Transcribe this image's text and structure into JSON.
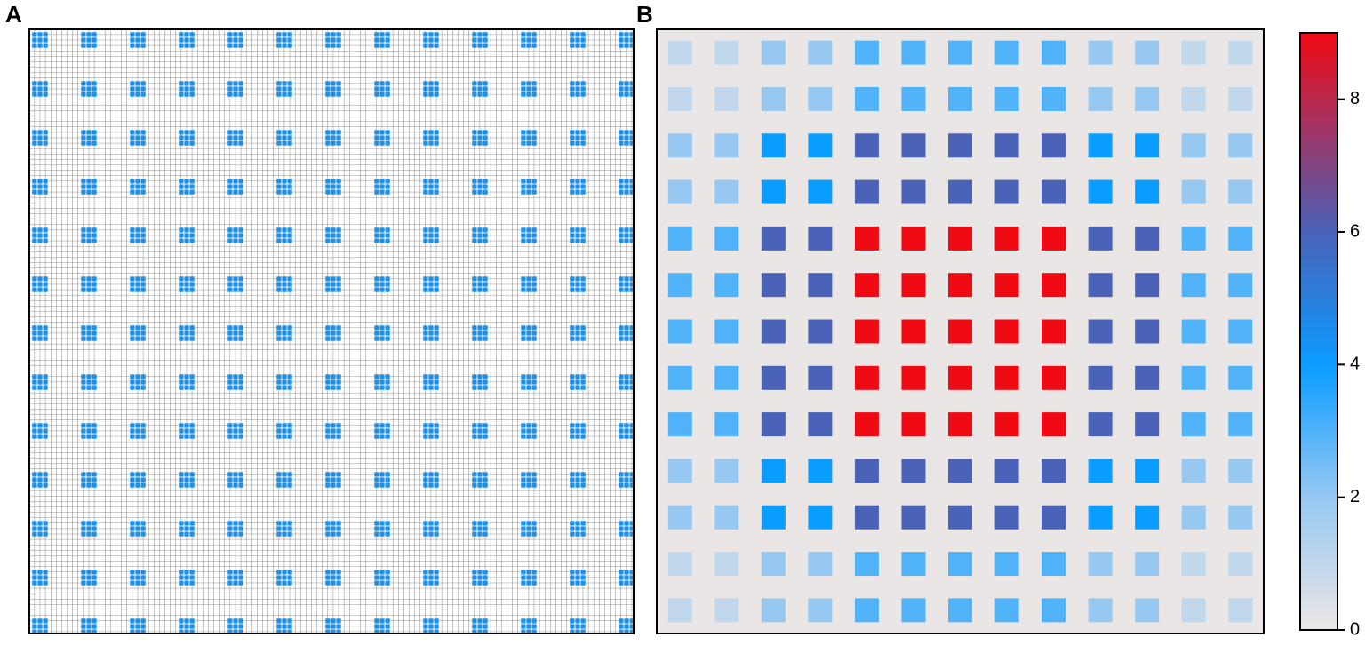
{
  "panels": [
    "A",
    "B"
  ],
  "chart_data": {
    "type": "heatmap",
    "z": [
      [
        1,
        1,
        2,
        2,
        3,
        3,
        3,
        3,
        3,
        2,
        2,
        1,
        1
      ],
      [
        1,
        1,
        2,
        2,
        3,
        3,
        3,
        3,
        3,
        2,
        2,
        1,
        1
      ],
      [
        2,
        2,
        4,
        4,
        6,
        6,
        6,
        6,
        6,
        4,
        4,
        2,
        2
      ],
      [
        2,
        2,
        4,
        4,
        6,
        6,
        6,
        6,
        6,
        4,
        4,
        2,
        2
      ],
      [
        3,
        3,
        6,
        6,
        9,
        9,
        9,
        9,
        9,
        6,
        6,
        3,
        3
      ],
      [
        3,
        3,
        6,
        6,
        9,
        9,
        9,
        9,
        9,
        6,
        6,
        3,
        3
      ],
      [
        3,
        3,
        6,
        6,
        9,
        9,
        9,
        9,
        9,
        6,
        6,
        3,
        3
      ],
      [
        3,
        3,
        6,
        6,
        9,
        9,
        9,
        9,
        9,
        6,
        6,
        3,
        3
      ],
      [
        3,
        3,
        6,
        6,
        9,
        9,
        9,
        9,
        9,
        6,
        6,
        3,
        3
      ],
      [
        2,
        2,
        4,
        4,
        6,
        6,
        6,
        6,
        6,
        4,
        4,
        2,
        2
      ],
      [
        2,
        2,
        4,
        4,
        6,
        6,
        6,
        6,
        6,
        4,
        4,
        2,
        2
      ],
      [
        1,
        1,
        2,
        2,
        3,
        3,
        3,
        3,
        3,
        2,
        2,
        1,
        1
      ],
      [
        1,
        1,
        2,
        2,
        3,
        3,
        3,
        3,
        3,
        2,
        2,
        1,
        1
      ]
    ],
    "zlim": [
      0,
      9
    ],
    "zticks": [
      0,
      2,
      4,
      6,
      8
    ],
    "colorscale": [
      [
        0,
        "#ece6e6"
      ],
      [
        2,
        "#96c8f2"
      ],
      [
        4,
        "#0a9cff"
      ],
      [
        6,
        "#4a62b8"
      ],
      [
        9,
        "#f00a14"
      ]
    ],
    "background": "#ebe6e6"
  }
}
